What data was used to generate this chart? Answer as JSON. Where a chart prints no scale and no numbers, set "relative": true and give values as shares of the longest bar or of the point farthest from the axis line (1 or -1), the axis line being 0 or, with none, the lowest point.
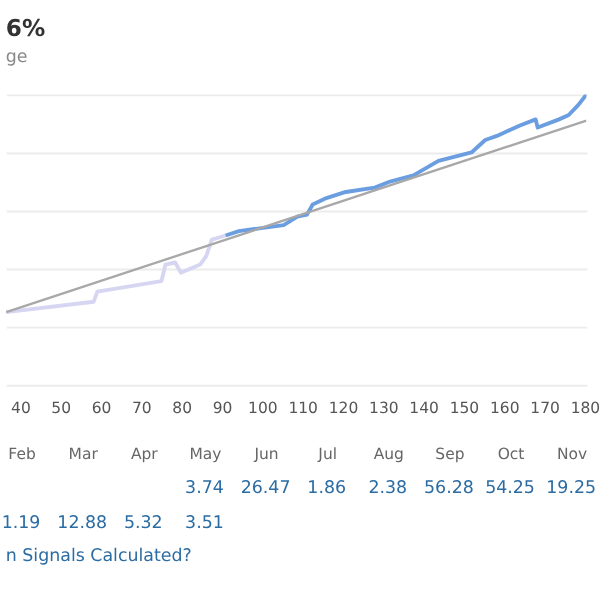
{
  "chart_data": [
    {
      "type": "line",
      "title": "6%",
      "subtitle": "ge",
      "xlim": [
        36.5,
        180.5
      ],
      "xticks": [
        40,
        50,
        60,
        70,
        80,
        90,
        100,
        110,
        120,
        130,
        140,
        150,
        160,
        170,
        180
      ],
      "relative": true,
      "grid": "y",
      "tick_labels": "x",
      "marker": "none",
      "line_style": "solid",
      "series": [
        {
          "color": "#d6d6f2",
          "x": [
            36.6,
            58.3,
            59.2,
            75.1,
            76.1,
            78.5,
            79.9,
            84.7,
            86.2,
            87.6,
            91.0
          ],
          "values": [
            0.25,
            0.286,
            0.321,
            0.357,
            0.414,
            0.421,
            0.386,
            0.414,
            0.443,
            0.5,
            0.514
          ]
        },
        {
          "color": "#6a9ee0",
          "x": [
            91.0,
            94.3,
            105.4,
            108.8,
            111.2,
            112.6,
            116.0,
            120.8,
            128.0,
            131.8,
            137.6,
            143.8,
            152.0,
            155.4,
            158.3,
            164.0,
            167.9,
            168.4,
            173.7,
            176.1,
            178.5,
            180.5
          ],
          "values": [
            0.514,
            0.529,
            0.55,
            0.579,
            0.586,
            0.621,
            0.643,
            0.664,
            0.679,
            0.7,
            0.721,
            0.771,
            0.8,
            0.843,
            0.857,
            0.893,
            0.914,
            0.886,
            0.914,
            0.929,
            0.964,
            1.0
          ]
        },
        {
          "color": "#a8a8a8",
          "x": [
            36.6,
            180.5
          ],
          "values": [
            0.25,
            0.91
          ]
        }
      ]
    },
    {
      "type": "other",
      "categories": [
        "Feb",
        "Mar",
        "Apr",
        "May",
        "Jun",
        "Jul",
        "Aug",
        "Sep",
        "Oct",
        "Nov"
      ],
      "data_labels": true,
      "annotations": [
        "n Signals Calculated?"
      ],
      "series": [
        {
          "color": "#2b6ca3",
          "values": [
            null,
            null,
            null,
            3.74,
            26.47,
            1.86,
            2.38,
            56.28,
            54.25,
            19.25
          ]
        },
        {
          "color": "#2b6ca3",
          "values": [
            1.19,
            12.88,
            5.32,
            3.51,
            null,
            null,
            null,
            null,
            null,
            null
          ]
        }
      ]
    }
  ]
}
